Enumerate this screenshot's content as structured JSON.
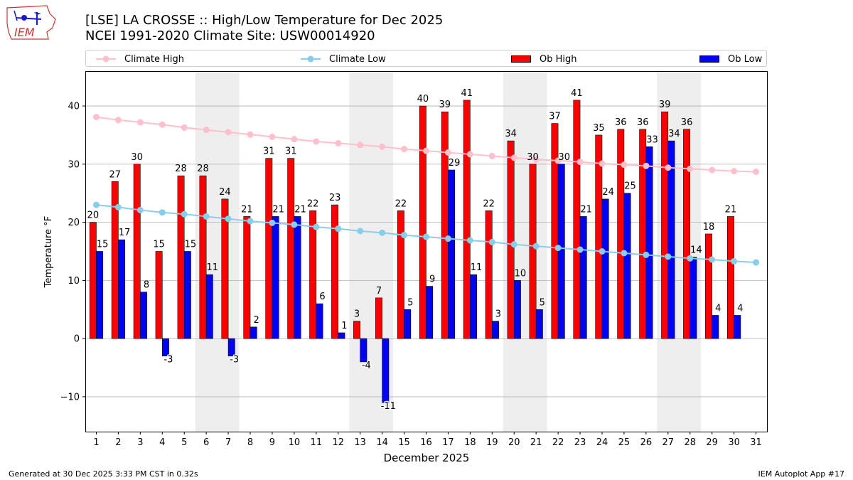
{
  "logo": {
    "text": "IEM",
    "icon": "iowa-map-weather-station-icon"
  },
  "title": {
    "line1": "[LSE] LA CROSSE :: High/Low Temperature for Dec 2025",
    "line2": "NCEI 1991-2020 Climate Site: USW00014920"
  },
  "legend": {
    "climate_high": "Climate High",
    "climate_low": "Climate Low",
    "ob_high": "Ob High",
    "ob_low": "Ob Low"
  },
  "colors": {
    "ob_high": "#ff0000",
    "ob_low": "#0000ff",
    "climate_high": "#ffc0cb",
    "climate_low": "#87ceeb",
    "weekend_shade": "#eeeeee",
    "grid": "#b0b0b0"
  },
  "footer": {
    "left": "Generated at 30 Dec 2025 3:33 PM CST in 0.32s",
    "right": "IEM Autoplot App #17"
  },
  "chart_data": {
    "type": "bar",
    "title": "[LSE] LA CROSSE :: High/Low Temperature for Dec 2025",
    "subtitle": "NCEI 1991-2020 Climate Site: USW00014920",
    "xlabel": "December 2025",
    "ylabel": "Temperature °F",
    "xlim": [
      0.5,
      31.5
    ],
    "ylim": [
      -16,
      46
    ],
    "yticks": [
      -10,
      0,
      10,
      20,
      30,
      40
    ],
    "grid": true,
    "legend_position": "top",
    "categories": [
      "1",
      "2",
      "3",
      "4",
      "5",
      "6",
      "7",
      "8",
      "9",
      "10",
      "11",
      "12",
      "13",
      "14",
      "15",
      "16",
      "17",
      "18",
      "19",
      "20",
      "21",
      "22",
      "23",
      "24",
      "25",
      "26",
      "27",
      "28",
      "29",
      "30",
      "31"
    ],
    "shaded_days": [
      [
        6,
        7
      ],
      [
        13,
        14
      ],
      [
        20,
        21
      ],
      [
        27,
        28
      ]
    ],
    "series": [
      {
        "name": "Ob High",
        "type": "bar",
        "values": [
          20,
          27,
          30,
          15,
          28,
          28,
          24,
          21,
          31,
          31,
          22,
          23,
          3,
          7,
          22,
          40,
          39,
          41,
          22,
          34,
          30,
          37,
          41,
          35,
          36,
          36,
          39,
          36,
          18,
          21,
          null
        ]
      },
      {
        "name": "Ob Low",
        "type": "bar",
        "values": [
          15,
          17,
          8,
          -3,
          15,
          11,
          -3,
          2,
          21,
          21,
          6,
          1,
          -4,
          -11,
          5,
          9,
          29,
          11,
          3,
          10,
          5,
          30,
          21,
          24,
          25,
          33,
          34,
          14,
          4,
          4,
          null
        ]
      },
      {
        "name": "Climate High",
        "type": "line",
        "values": [
          38.1,
          37.6,
          37.2,
          36.8,
          36.3,
          35.9,
          35.5,
          35.1,
          34.7,
          34.3,
          33.9,
          33.6,
          33.3,
          33.0,
          32.6,
          32.3,
          32.0,
          31.7,
          31.4,
          31.1,
          30.8,
          30.6,
          30.4,
          30.1,
          29.9,
          29.7,
          29.4,
          29.2,
          29.0,
          28.8,
          28.7
        ]
      },
      {
        "name": "Climate Low",
        "type": "line",
        "values": [
          23.0,
          22.6,
          22.1,
          21.7,
          21.4,
          21.0,
          20.6,
          20.2,
          19.9,
          19.6,
          19.2,
          18.9,
          18.5,
          18.2,
          17.8,
          17.5,
          17.2,
          16.9,
          16.6,
          16.2,
          15.9,
          15.6,
          15.3,
          15.0,
          14.7,
          14.4,
          14.1,
          13.8,
          13.6,
          13.3,
          13.1
        ]
      }
    ]
  }
}
